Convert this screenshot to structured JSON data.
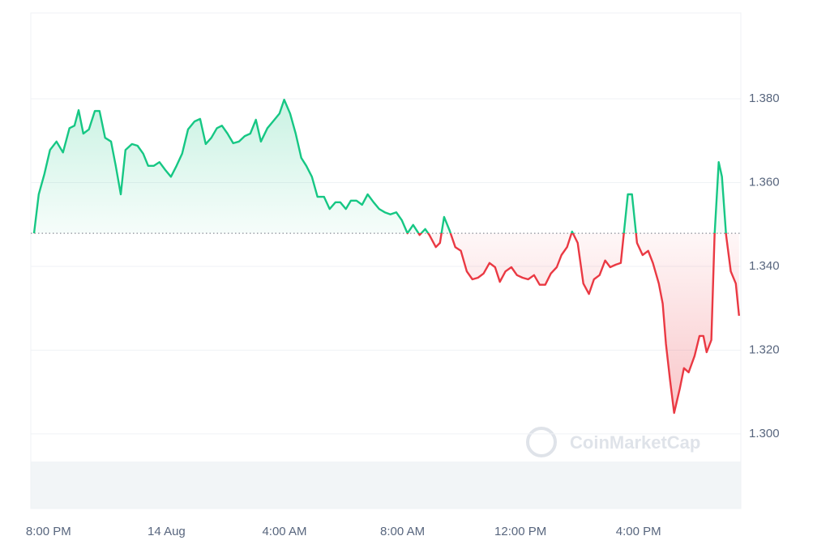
{
  "chart_data": {
    "type": "line",
    "watermark": "CoinMarketCap",
    "x": [
      -0.49,
      -0.33,
      -0.14,
      0.05,
      0.27,
      0.49,
      0.71,
      0.88,
      1.02,
      1.18,
      1.37,
      1.57,
      1.73,
      1.92,
      2.12,
      2.28,
      2.45,
      2.61,
      2.83,
      3.02,
      3.21,
      3.38,
      3.57,
      3.76,
      3.96,
      4.15,
      4.34,
      4.53,
      4.73,
      4.95,
      5.14,
      5.33,
      5.52,
      5.71,
      5.88,
      6.07,
      6.26,
      6.46,
      6.65,
      6.84,
      7.03,
      7.2,
      7.42,
      7.61,
      7.83,
      7.99,
      8.19,
      8.38,
      8.57,
      8.74,
      8.93,
      9.12,
      9.34,
      9.53,
      9.73,
      9.89,
      10.08,
      10.25,
      10.44,
      10.63,
      10.82,
      11.02,
      11.21,
      11.4,
      11.59,
      11.79,
      11.98,
      12.17,
      12.36,
      12.58,
      12.77,
      12.91,
      13.13,
      13.27,
      13.41,
      13.6,
      13.79,
      13.98,
      14.18,
      14.37,
      14.56,
      14.75,
      14.95,
      15.14,
      15.3,
      15.49,
      15.69,
      15.88,
      16.07,
      16.26,
      16.46,
      16.65,
      16.84,
      17.03,
      17.23,
      17.39,
      17.58,
      17.75,
      17.94,
      18.13,
      18.32,
      18.49,
      18.68,
      18.87,
      19.04,
      19.23,
      19.4,
      19.51,
      19.64,
      19.78,
      19.95,
      20.14,
      20.33,
      20.49,
      20.69,
      20.82,
      20.93,
      21.07,
      21.21,
      21.4,
      21.54,
      21.7,
      21.9,
      22.07,
      22.2,
      22.31,
      22.47,
      22.58,
      22.72,
      22.83,
      22.97,
      23.13,
      23.3,
      23.41
    ],
    "series": [
      {
        "up_color": "#16c784",
        "down_color": "#ea3943",
        "values": [
          1.3479,
          1.3572,
          1.362,
          1.3678,
          1.3698,
          1.3672,
          1.373,
          1.3736,
          1.3773,
          1.3717,
          1.3727,
          1.3771,
          1.3771,
          1.3707,
          1.3698,
          1.364,
          1.3572,
          1.3678,
          1.3692,
          1.3688,
          1.3669,
          1.364,
          1.364,
          1.3649,
          1.363,
          1.3614,
          1.364,
          1.3669,
          1.3727,
          1.3746,
          1.3752,
          1.3692,
          1.3707,
          1.373,
          1.3736,
          1.3717,
          1.3694,
          1.3698,
          1.3711,
          1.3717,
          1.375,
          1.3698,
          1.373,
          1.3746,
          1.3765,
          1.3798,
          1.3765,
          1.3717,
          1.3659,
          1.364,
          1.3614,
          1.3566,
          1.3566,
          1.3537,
          1.3553,
          1.3553,
          1.3537,
          1.3557,
          1.3557,
          1.3547,
          1.3572,
          1.3553,
          1.3537,
          1.3529,
          1.3524,
          1.3529,
          1.351,
          1.3479,
          1.3499,
          1.3475,
          1.3489,
          1.3475,
          1.3446,
          1.3456,
          1.3518,
          1.3485,
          1.3446,
          1.3437,
          1.3388,
          1.3369,
          1.3373,
          1.3383,
          1.3408,
          1.3398,
          1.3363,
          1.3388,
          1.3398,
          1.3379,
          1.3373,
          1.3369,
          1.3379,
          1.3356,
          1.3356,
          1.3383,
          1.3398,
          1.3427,
          1.3446,
          1.3483,
          1.3456,
          1.3359,
          1.3334,
          1.3369,
          1.3379,
          1.3414,
          1.3398,
          1.3404,
          1.3408,
          1.3483,
          1.3572,
          1.3572,
          1.3456,
          1.3427,
          1.3437,
          1.3408,
          1.3359,
          1.3311,
          1.3215,
          1.3128,
          1.305,
          1.3108,
          1.3157,
          1.3147,
          1.3186,
          1.3234,
          1.3234,
          1.3195,
          1.3224,
          1.3475,
          1.3649,
          1.3614,
          1.3475,
          1.3388,
          1.3359,
          1.3282
        ]
      }
    ],
    "xlim": [
      -0.6,
      23.47
    ],
    "xticks": [
      {
        "value": 0,
        "label": "8:00 PM"
      },
      {
        "value": 4,
        "label": "14 Aug"
      },
      {
        "value": 8,
        "label": "4:00 AM"
      },
      {
        "value": 12,
        "label": "8:00 AM"
      },
      {
        "value": 16,
        "label": "12:00 PM"
      },
      {
        "value": 20,
        "label": "4:00 PM"
      }
    ],
    "ylim": [
      1.2822,
      1.4005
    ],
    "yticks": [
      {
        "value": 1.3,
        "label": "1.300"
      },
      {
        "value": 1.32,
        "label": "1.320"
      },
      {
        "value": 1.34,
        "label": "1.340"
      },
      {
        "value": 1.36,
        "label": "1.360"
      },
      {
        "value": 1.38,
        "label": "1.380"
      }
    ],
    "grid": true
  }
}
